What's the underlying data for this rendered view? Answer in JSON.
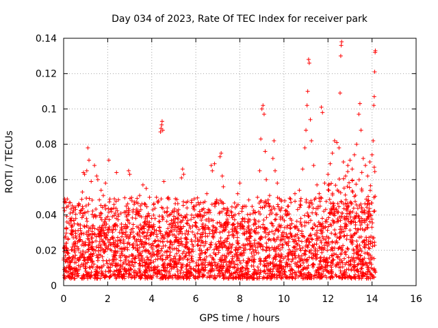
{
  "chart_data": {
    "type": "scatter",
    "title": "Day 034 of 2023, Rate Of TEC Index for receiver park",
    "xlabel": "GPS time / hours",
    "ylabel": "ROTI / TECUs",
    "xlim": [
      0,
      16
    ],
    "ylim": [
      0,
      0.14
    ],
    "xticks": [
      0,
      2,
      4,
      6,
      8,
      10,
      12,
      14,
      16
    ],
    "xtick_labels": [
      "0",
      "2",
      "4",
      "6",
      "8",
      "10",
      "12",
      "14",
      "16"
    ],
    "yticks": [
      0,
      0.02,
      0.04,
      0.06,
      0.08,
      0.1,
      0.12,
      0.14
    ],
    "ytick_labels": [
      "0",
      "0.02",
      "0.04",
      "0.06",
      "0.08",
      "0.1",
      "0.12",
      "0.14"
    ],
    "grid": true,
    "marker": "+",
    "color": "#ff0000",
    "series": [
      {
        "name": "ROTI",
        "note": "dense band of points 0.005-0.035 across 0-14.1 h; notable outliers listed",
        "points": [
          [
            0.05,
            0.049
          ],
          [
            0.1,
            0.047
          ],
          [
            0.15,
            0.036
          ],
          [
            0.2,
            0.045
          ],
          [
            0.3,
            0.041
          ],
          [
            0.45,
            0.044
          ],
          [
            0.55,
            0.038
          ],
          [
            0.7,
            0.046
          ],
          [
            0.85,
            0.053
          ],
          [
            0.9,
            0.064
          ],
          [
            0.95,
            0.063
          ],
          [
            1.05,
            0.065
          ],
          [
            1.1,
            0.078
          ],
          [
            1.15,
            0.071
          ],
          [
            1.25,
            0.059
          ],
          [
            1.4,
            0.068
          ],
          [
            1.5,
            0.062
          ],
          [
            1.55,
            0.06
          ],
          [
            1.7,
            0.054
          ],
          [
            1.8,
            0.051
          ],
          [
            1.9,
            0.058
          ],
          [
            2.05,
            0.071
          ],
          [
            2.1,
            0.049
          ],
          [
            2.4,
            0.064
          ],
          [
            2.6,
            0.041
          ],
          [
            2.85,
            0.039
          ],
          [
            2.95,
            0.065
          ],
          [
            3.0,
            0.063
          ],
          [
            3.1,
            0.048
          ],
          [
            3.2,
            0.046
          ],
          [
            3.45,
            0.051
          ],
          [
            3.6,
            0.057
          ],
          [
            3.75,
            0.055
          ],
          [
            3.9,
            0.05
          ],
          [
            4.05,
            0.043
          ],
          [
            4.15,
            0.038
          ],
          [
            4.3,
            0.048
          ],
          [
            4.4,
            0.087
          ],
          [
            4.42,
            0.089
          ],
          [
            4.45,
            0.091
          ],
          [
            4.47,
            0.093
          ],
          [
            4.5,
            0.088
          ],
          [
            4.55,
            0.059
          ],
          [
            4.7,
            0.044
          ],
          [
            4.8,
            0.04
          ],
          [
            5.0,
            0.036
          ],
          [
            5.2,
            0.041
          ],
          [
            5.35,
            0.061
          ],
          [
            5.4,
            0.066
          ],
          [
            5.45,
            0.063
          ],
          [
            5.6,
            0.044
          ],
          [
            5.8,
            0.047
          ],
          [
            6.0,
            0.04
          ],
          [
            6.1,
            0.039
          ],
          [
            6.3,
            0.043
          ],
          [
            6.5,
            0.052
          ],
          [
            6.7,
            0.068
          ],
          [
            6.75,
            0.065
          ],
          [
            6.85,
            0.069
          ],
          [
            6.95,
            0.047
          ],
          [
            7.1,
            0.073
          ],
          [
            7.15,
            0.075
          ],
          [
            7.2,
            0.062
          ],
          [
            7.25,
            0.056
          ],
          [
            7.4,
            0.04
          ],
          [
            7.6,
            0.042
          ],
          [
            7.9,
            0.052
          ],
          [
            8.0,
            0.058
          ],
          [
            8.2,
            0.045
          ],
          [
            8.4,
            0.036
          ],
          [
            8.6,
            0.041
          ],
          [
            8.8,
            0.05
          ],
          [
            8.9,
            0.065
          ],
          [
            8.95,
            0.083
          ],
          [
            9.0,
            0.1
          ],
          [
            9.05,
            0.102
          ],
          [
            9.1,
            0.097
          ],
          [
            9.15,
            0.076
          ],
          [
            9.2,
            0.06
          ],
          [
            9.35,
            0.051
          ],
          [
            9.5,
            0.072
          ],
          [
            9.55,
            0.082
          ],
          [
            9.6,
            0.065
          ],
          [
            9.7,
            0.058
          ],
          [
            9.85,
            0.033
          ],
          [
            10.0,
            0.03
          ],
          [
            10.2,
            0.045
          ],
          [
            10.3,
            0.049
          ],
          [
            10.5,
            0.052
          ],
          [
            10.7,
            0.054
          ],
          [
            10.85,
            0.066
          ],
          [
            10.95,
            0.078
          ],
          [
            11.0,
            0.088
          ],
          [
            11.05,
            0.102
          ],
          [
            11.08,
            0.11
          ],
          [
            11.12,
            0.128
          ],
          [
            11.15,
            0.126
          ],
          [
            11.2,
            0.094
          ],
          [
            11.25,
            0.082
          ],
          [
            11.35,
            0.068
          ],
          [
            11.5,
            0.057
          ],
          [
            11.6,
            0.052
          ],
          [
            11.7,
            0.101
          ],
          [
            11.75,
            0.098
          ],
          [
            11.85,
            0.058
          ],
          [
            12.0,
            0.063
          ],
          [
            12.1,
            0.069
          ],
          [
            12.2,
            0.075
          ],
          [
            12.3,
            0.082
          ],
          [
            12.4,
            0.081
          ],
          [
            12.5,
            0.078
          ],
          [
            12.55,
            0.109
          ],
          [
            12.58,
            0.13
          ],
          [
            12.6,
            0.136
          ],
          [
            12.62,
            0.138
          ],
          [
            12.7,
            0.07
          ],
          [
            12.8,
            0.062
          ],
          [
            12.9,
            0.068
          ],
          [
            13.0,
            0.071
          ],
          [
            13.1,
            0.066
          ],
          [
            13.2,
            0.074
          ],
          [
            13.3,
            0.08
          ],
          [
            13.4,
            0.097
          ],
          [
            13.45,
            0.103
          ],
          [
            13.5,
            0.088
          ],
          [
            13.6,
            0.072
          ],
          [
            13.7,
            0.068
          ],
          [
            13.8,
            0.062
          ],
          [
            13.9,
            0.07
          ],
          [
            14.0,
            0.074
          ],
          [
            14.05,
            0.082
          ],
          [
            14.08,
            0.102
          ],
          [
            14.1,
            0.107
          ],
          [
            14.12,
            0.121
          ],
          [
            14.14,
            0.132
          ],
          [
            14.15,
            0.133
          ],
          [
            14.1,
            0.067
          ]
        ]
      }
    ],
    "band": {
      "x_start": 0,
      "x_end": 14.15,
      "y_low": 0.004,
      "y_high": 0.035
    }
  }
}
